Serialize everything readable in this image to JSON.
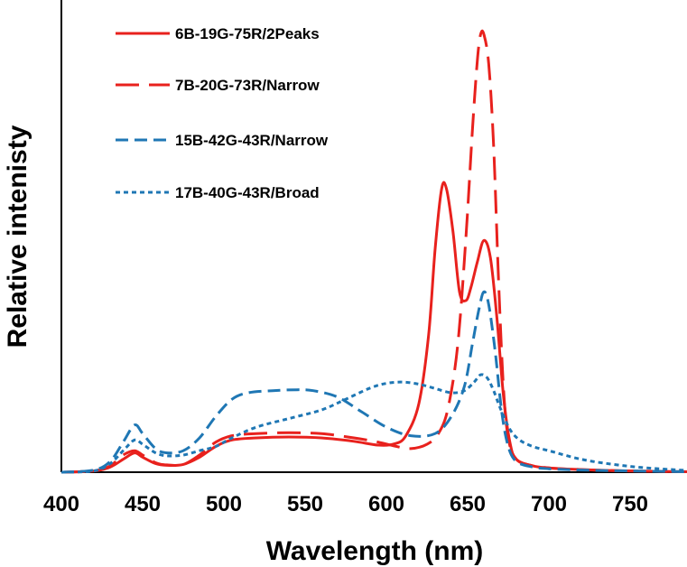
{
  "chart_data": {
    "type": "line",
    "title": "",
    "xlabel": "Wavelength (nm)",
    "ylabel": "Relative intenisty",
    "xlim": [
      400,
      785
    ],
    "ylim": [
      0,
      1.1
    ],
    "xticks": [
      400,
      450,
      500,
      550,
      600,
      650,
      700,
      750
    ],
    "grid": false,
    "legend_position": "top-left",
    "series": [
      {
        "name": "6B-19G-75R/2Peaks",
        "color": "#e8211d",
        "dash": "solid",
        "points": [
          [
            400,
            0
          ],
          [
            420,
            0.003
          ],
          [
            430,
            0.012
          ],
          [
            438,
            0.03
          ],
          [
            445,
            0.045
          ],
          [
            450,
            0.035
          ],
          [
            458,
            0.02
          ],
          [
            465,
            0.016
          ],
          [
            475,
            0.018
          ],
          [
            485,
            0.035
          ],
          [
            495,
            0.06
          ],
          [
            505,
            0.075
          ],
          [
            520,
            0.08
          ],
          [
            540,
            0.082
          ],
          [
            560,
            0.08
          ],
          [
            580,
            0.072
          ],
          [
            595,
            0.063
          ],
          [
            605,
            0.066
          ],
          [
            612,
            0.085
          ],
          [
            620,
            0.16
          ],
          [
            626,
            0.32
          ],
          [
            630,
            0.52
          ],
          [
            634,
            0.66
          ],
          [
            637,
            0.66
          ],
          [
            641,
            0.56
          ],
          [
            645,
            0.42
          ],
          [
            649,
            0.4
          ],
          [
            652,
            0.43
          ],
          [
            656,
            0.49
          ],
          [
            660,
            0.54
          ],
          [
            664,
            0.5
          ],
          [
            668,
            0.36
          ],
          [
            672,
            0.18
          ],
          [
            676,
            0.07
          ],
          [
            680,
            0.03
          ],
          [
            690,
            0.015
          ],
          [
            700,
            0.01
          ],
          [
            720,
            0.006
          ],
          [
            750,
            0.003
          ],
          [
            785,
            0.001
          ]
        ]
      },
      {
        "name": "7B-20G-73R/Narrow",
        "color": "#e8211d",
        "dash": "long-dash",
        "points": [
          [
            400,
            0
          ],
          [
            420,
            0.003
          ],
          [
            430,
            0.015
          ],
          [
            438,
            0.04
          ],
          [
            445,
            0.05
          ],
          [
            450,
            0.04
          ],
          [
            458,
            0.022
          ],
          [
            465,
            0.017
          ],
          [
            475,
            0.018
          ],
          [
            485,
            0.04
          ],
          [
            495,
            0.07
          ],
          [
            505,
            0.085
          ],
          [
            520,
            0.09
          ],
          [
            540,
            0.092
          ],
          [
            560,
            0.09
          ],
          [
            580,
            0.08
          ],
          [
            595,
            0.07
          ],
          [
            605,
            0.061
          ],
          [
            615,
            0.055
          ],
          [
            625,
            0.065
          ],
          [
            632,
            0.09
          ],
          [
            638,
            0.15
          ],
          [
            644,
            0.3
          ],
          [
            649,
            0.55
          ],
          [
            653,
            0.8
          ],
          [
            656,
            0.96
          ],
          [
            658,
            1.02
          ],
          [
            660,
            1.02
          ],
          [
            663,
            0.95
          ],
          [
            666,
            0.76
          ],
          [
            669,
            0.45
          ],
          [
            672,
            0.2
          ],
          [
            675,
            0.08
          ],
          [
            680,
            0.03
          ],
          [
            690,
            0.015
          ],
          [
            700,
            0.01
          ],
          [
            720,
            0.006
          ],
          [
            750,
            0.003
          ],
          [
            785,
            0.001
          ]
        ]
      },
      {
        "name": "15B-42G-43R/Narrow",
        "color": "#1f77b4",
        "dash": "medium-dash",
        "points": [
          [
            400,
            0
          ],
          [
            420,
            0.005
          ],
          [
            430,
            0.025
          ],
          [
            438,
            0.07
          ],
          [
            445,
            0.11
          ],
          [
            450,
            0.09
          ],
          [
            458,
            0.055
          ],
          [
            465,
            0.045
          ],
          [
            475,
            0.05
          ],
          [
            485,
            0.08
          ],
          [
            495,
            0.13
          ],
          [
            505,
            0.17
          ],
          [
            515,
            0.185
          ],
          [
            530,
            0.19
          ],
          [
            545,
            0.192
          ],
          [
            555,
            0.19
          ],
          [
            570,
            0.175
          ],
          [
            585,
            0.14
          ],
          [
            600,
            0.105
          ],
          [
            615,
            0.085
          ],
          [
            630,
            0.09
          ],
          [
            640,
            0.13
          ],
          [
            648,
            0.2
          ],
          [
            653,
            0.3
          ],
          [
            657,
            0.38
          ],
          [
            660,
            0.42
          ],
          [
            663,
            0.39
          ],
          [
            667,
            0.28
          ],
          [
            671,
            0.14
          ],
          [
            675,
            0.06
          ],
          [
            680,
            0.025
          ],
          [
            690,
            0.012
          ],
          [
            700,
            0.008
          ],
          [
            720,
            0.005
          ],
          [
            750,
            0.003
          ],
          [
            785,
            0.001
          ]
        ]
      },
      {
        "name": "17B-40G-43R/Broad",
        "color": "#1f77b4",
        "dash": "short-dash",
        "points": [
          [
            400,
            0
          ],
          [
            420,
            0.003
          ],
          [
            430,
            0.02
          ],
          [
            438,
            0.05
          ],
          [
            445,
            0.075
          ],
          [
            450,
            0.065
          ],
          [
            458,
            0.045
          ],
          [
            465,
            0.038
          ],
          [
            475,
            0.04
          ],
          [
            485,
            0.05
          ],
          [
            495,
            0.06
          ],
          [
            505,
            0.08
          ],
          [
            520,
            0.105
          ],
          [
            540,
            0.125
          ],
          [
            560,
            0.145
          ],
          [
            575,
            0.17
          ],
          [
            590,
            0.196
          ],
          [
            600,
            0.207
          ],
          [
            610,
            0.21
          ],
          [
            620,
            0.205
          ],
          [
            630,
            0.195
          ],
          [
            640,
            0.185
          ],
          [
            648,
            0.19
          ],
          [
            654,
            0.21
          ],
          [
            658,
            0.227
          ],
          [
            662,
            0.22
          ],
          [
            666,
            0.19
          ],
          [
            670,
            0.15
          ],
          [
            676,
            0.1
          ],
          [
            682,
            0.075
          ],
          [
            690,
            0.06
          ],
          [
            700,
            0.05
          ],
          [
            720,
            0.03
          ],
          [
            740,
            0.018
          ],
          [
            760,
            0.01
          ],
          [
            785,
            0.004
          ]
        ]
      }
    ]
  }
}
